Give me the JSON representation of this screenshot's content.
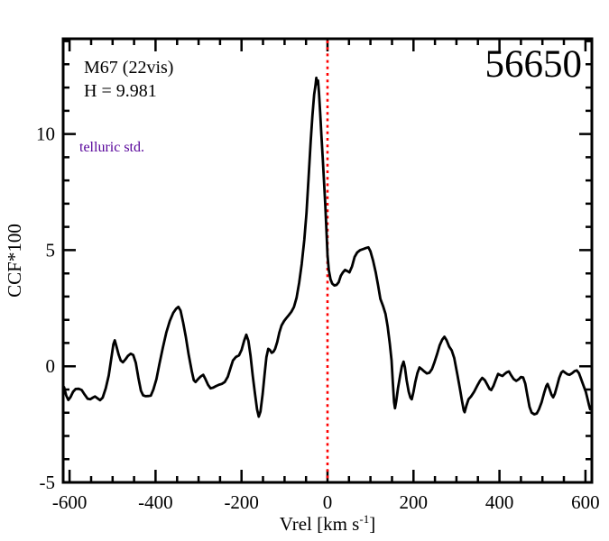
{
  "figure": {
    "annotations": {
      "cluster": "M67 (22vis)",
      "hmag": "H = 9.981",
      "note": "telluric std.",
      "note_color": "#550099",
      "epoch": "56650"
    },
    "axes": {
      "ylabel": "CCF*100",
      "xlabel_text": "Vrel [km s",
      "xlabel_sup": "-1",
      "xlabel_suffix": "]"
    }
  },
  "chart_data": {
    "type": "line",
    "title": "",
    "xlabel": "Vrel [km s^-1]",
    "ylabel": "CCF*100",
    "xlim": [
      -615,
      615
    ],
    "ylim": [
      -5,
      14.1
    ],
    "grid": false,
    "legend": false,
    "x_major_ticks": [
      -600,
      -400,
      -200,
      0,
      200,
      400,
      600
    ],
    "x_tick_labels": [
      "-600",
      "-400",
      "-200",
      "0",
      "200",
      "400",
      "600"
    ],
    "x_minor_step": 50,
    "y_major_ticks": [
      -5,
      0,
      5,
      10
    ],
    "y_tick_labels": [
      "-5",
      "0",
      "5",
      "10"
    ],
    "y_minor_step": 1,
    "line_color": "#000000",
    "frame_color": "#000000",
    "reference_line": {
      "x": 0,
      "color": "#ff0000",
      "style": "dotted"
    },
    "series": [
      {
        "name": "CCF",
        "points": [
          [
            -613,
            -0.9
          ],
          [
            -608,
            -1.25
          ],
          [
            -603,
            -1.45
          ],
          [
            -598,
            -1.33
          ],
          [
            -592,
            -1.1
          ],
          [
            -586,
            -0.98
          ],
          [
            -579,
            -0.97
          ],
          [
            -572,
            -1.02
          ],
          [
            -565,
            -1.22
          ],
          [
            -558,
            -1.4
          ],
          [
            -552,
            -1.42
          ],
          [
            -546,
            -1.35
          ],
          [
            -541,
            -1.3
          ],
          [
            -535,
            -1.38
          ],
          [
            -529,
            -1.46
          ],
          [
            -523,
            -1.35
          ],
          [
            -516,
            -0.95
          ],
          [
            -509,
            -0.4
          ],
          [
            -503,
            0.35
          ],
          [
            -498,
            0.95
          ],
          [
            -495,
            1.12
          ],
          [
            -491,
            0.85
          ],
          [
            -486,
            0.5
          ],
          [
            -481,
            0.25
          ],
          [
            -476,
            0.17
          ],
          [
            -470,
            0.3
          ],
          [
            -464,
            0.45
          ],
          [
            -458,
            0.54
          ],
          [
            -452,
            0.48
          ],
          [
            -446,
            0.15
          ],
          [
            -440,
            -0.5
          ],
          [
            -434,
            -1.05
          ],
          [
            -429,
            -1.25
          ],
          [
            -423,
            -1.29
          ],
          [
            -417,
            -1.28
          ],
          [
            -411,
            -1.26
          ],
          [
            -405,
            -1.0
          ],
          [
            -398,
            -0.55
          ],
          [
            -391,
            0.1
          ],
          [
            -383,
            0.8
          ],
          [
            -375,
            1.45
          ],
          [
            -367,
            1.95
          ],
          [
            -359,
            2.3
          ],
          [
            -352,
            2.48
          ],
          [
            -347,
            2.56
          ],
          [
            -342,
            2.4
          ],
          [
            -336,
            1.9
          ],
          [
            -330,
            1.3
          ],
          [
            -323,
            0.5
          ],
          [
            -316,
            -0.2
          ],
          [
            -311,
            -0.6
          ],
          [
            -307,
            -0.68
          ],
          [
            -301,
            -0.55
          ],
          [
            -295,
            -0.44
          ],
          [
            -289,
            -0.37
          ],
          [
            -284,
            -0.55
          ],
          [
            -278,
            -0.8
          ],
          [
            -272,
            -0.95
          ],
          [
            -266,
            -0.92
          ],
          [
            -259,
            -0.85
          ],
          [
            -252,
            -0.79
          ],
          [
            -246,
            -0.76
          ],
          [
            -239,
            -0.68
          ],
          [
            -232,
            -0.45
          ],
          [
            -226,
            -0.1
          ],
          [
            -220,
            0.25
          ],
          [
            -213,
            0.4
          ],
          [
            -206,
            0.47
          ],
          [
            -200,
            0.7
          ],
          [
            -194,
            1.1
          ],
          [
            -189,
            1.36
          ],
          [
            -184,
            1.1
          ],
          [
            -179,
            0.45
          ],
          [
            -174,
            -0.4
          ],
          [
            -169,
            -1.15
          ],
          [
            -164,
            -1.85
          ],
          [
            -160,
            -2.17
          ],
          [
            -156,
            -1.95
          ],
          [
            -151,
            -1.2
          ],
          [
            -146,
            -0.3
          ],
          [
            -142,
            0.4
          ],
          [
            -138,
            0.75
          ],
          [
            -134,
            0.7
          ],
          [
            -130,
            0.58
          ],
          [
            -126,
            0.62
          ],
          [
            -122,
            0.75
          ],
          [
            -117,
            1.05
          ],
          [
            -112,
            1.45
          ],
          [
            -107,
            1.75
          ],
          [
            -101,
            1.95
          ],
          [
            -96,
            2.07
          ],
          [
            -90,
            2.2
          ],
          [
            -84,
            2.35
          ],
          [
            -78,
            2.55
          ],
          [
            -72,
            2.95
          ],
          [
            -66,
            3.6
          ],
          [
            -60,
            4.4
          ],
          [
            -54,
            5.45
          ],
          [
            -49,
            6.6
          ],
          [
            -44,
            8.1
          ],
          [
            -39,
            9.7
          ],
          [
            -35,
            10.8
          ],
          [
            -31,
            11.7
          ],
          [
            -28,
            12.1
          ],
          [
            -26,
            12.42
          ],
          [
            -24,
            12.15
          ],
          [
            -22,
            12.3
          ],
          [
            -20,
            11.8
          ],
          [
            -17,
            10.9
          ],
          [
            -14,
            9.9
          ],
          [
            -11,
            8.9
          ],
          [
            -8,
            7.9
          ],
          [
            -5,
            6.9
          ],
          [
            -2,
            5.7
          ],
          [
            0,
            4.8
          ],
          [
            3,
            4.15
          ],
          [
            7,
            3.75
          ],
          [
            11,
            3.56
          ],
          [
            16,
            3.48
          ],
          [
            21,
            3.5
          ],
          [
            26,
            3.62
          ],
          [
            31,
            3.9
          ],
          [
            36,
            4.05
          ],
          [
            41,
            4.15
          ],
          [
            46,
            4.1
          ],
          [
            51,
            4.04
          ],
          [
            57,
            4.3
          ],
          [
            63,
            4.7
          ],
          [
            69,
            4.9
          ],
          [
            76,
            5.0
          ],
          [
            84,
            5.05
          ],
          [
            91,
            5.1
          ],
          [
            95,
            5.12
          ],
          [
            100,
            4.95
          ],
          [
            106,
            4.55
          ],
          [
            112,
            4.05
          ],
          [
            118,
            3.45
          ],
          [
            123,
            2.9
          ],
          [
            129,
            2.6
          ],
          [
            135,
            2.25
          ],
          [
            140,
            1.7
          ],
          [
            145,
            0.95
          ],
          [
            149,
            0.25
          ],
          [
            152,
            -0.7
          ],
          [
            155,
            -1.55
          ],
          [
            157,
            -1.81
          ],
          [
            160,
            -1.5
          ],
          [
            164,
            -0.95
          ],
          [
            169,
            -0.4
          ],
          [
            173,
            0.0
          ],
          [
            177,
            0.2
          ],
          [
            180,
            -0.05
          ],
          [
            184,
            -0.6
          ],
          [
            189,
            -1.1
          ],
          [
            193,
            -1.35
          ],
          [
            196,
            -1.42
          ],
          [
            200,
            -1.1
          ],
          [
            204,
            -0.7
          ],
          [
            209,
            -0.3
          ],
          [
            214,
            -0.05
          ],
          [
            219,
            -0.12
          ],
          [
            225,
            -0.22
          ],
          [
            231,
            -0.31
          ],
          [
            237,
            -0.28
          ],
          [
            243,
            -0.12
          ],
          [
            249,
            0.18
          ],
          [
            255,
            0.53
          ],
          [
            261,
            0.9
          ],
          [
            267,
            1.15
          ],
          [
            272,
            1.27
          ],
          [
            277,
            1.12
          ],
          [
            283,
            0.85
          ],
          [
            289,
            0.68
          ],
          [
            295,
            0.35
          ],
          [
            302,
            -0.35
          ],
          [
            308,
            -0.95
          ],
          [
            313,
            -1.5
          ],
          [
            317,
            -1.9
          ],
          [
            319,
            -1.98
          ],
          [
            323,
            -1.7
          ],
          [
            328,
            -1.42
          ],
          [
            334,
            -1.3
          ],
          [
            341,
            -1.1
          ],
          [
            348,
            -0.85
          ],
          [
            355,
            -0.62
          ],
          [
            360,
            -0.5
          ],
          [
            366,
            -0.6
          ],
          [
            372,
            -0.8
          ],
          [
            377,
            -0.98
          ],
          [
            381,
            -1.02
          ],
          [
            386,
            -0.85
          ],
          [
            392,
            -0.55
          ],
          [
            397,
            -0.33
          ],
          [
            402,
            -0.38
          ],
          [
            407,
            -0.42
          ],
          [
            412,
            -0.33
          ],
          [
            417,
            -0.26
          ],
          [
            422,
            -0.22
          ],
          [
            427,
            -0.38
          ],
          [
            433,
            -0.55
          ],
          [
            439,
            -0.63
          ],
          [
            445,
            -0.56
          ],
          [
            450,
            -0.46
          ],
          [
            455,
            -0.48
          ],
          [
            460,
            -0.75
          ],
          [
            465,
            -1.25
          ],
          [
            470,
            -1.75
          ],
          [
            475,
            -2.0
          ],
          [
            481,
            -2.07
          ],
          [
            487,
            -2.03
          ],
          [
            492,
            -1.85
          ],
          [
            498,
            -1.55
          ],
          [
            504,
            -1.15
          ],
          [
            509,
            -0.85
          ],
          [
            512,
            -0.76
          ],
          [
            516,
            -0.95
          ],
          [
            521,
            -1.22
          ],
          [
            525,
            -1.34
          ],
          [
            529,
            -1.18
          ],
          [
            534,
            -0.85
          ],
          [
            539,
            -0.5
          ],
          [
            544,
            -0.27
          ],
          [
            548,
            -0.21
          ],
          [
            553,
            -0.28
          ],
          [
            558,
            -0.34
          ],
          [
            563,
            -0.37
          ],
          [
            569,
            -0.3
          ],
          [
            575,
            -0.21
          ],
          [
            580,
            -0.18
          ],
          [
            585,
            -0.3
          ],
          [
            590,
            -0.55
          ],
          [
            596,
            -0.85
          ],
          [
            601,
            -1.1
          ],
          [
            605,
            -1.4
          ],
          [
            608,
            -1.65
          ],
          [
            611,
            -1.85
          ]
        ]
      }
    ]
  }
}
